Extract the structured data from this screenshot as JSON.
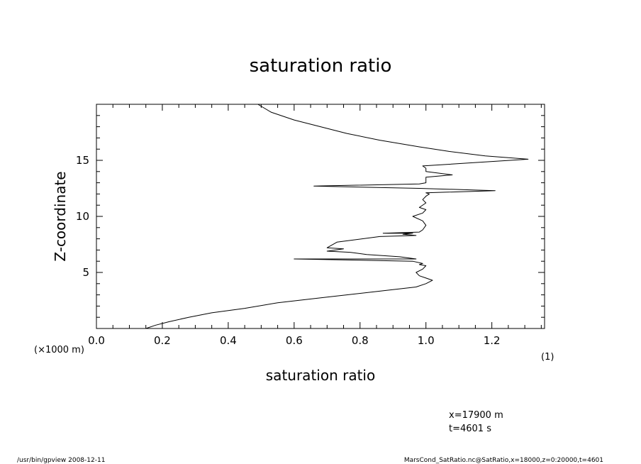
{
  "chart_data": {
    "type": "line",
    "title": "saturation ratio",
    "xlabel": "saturation ratio",
    "ylabel": "Z-coordinate",
    "xlim": [
      0.0,
      1.36
    ],
    "ylim": [
      0,
      20
    ],
    "x_ticks": [
      "0.0",
      "0.2",
      "0.4",
      "0.6",
      "0.8",
      "1.0",
      "1.2"
    ],
    "x_tick_values": [
      0.0,
      0.2,
      0.4,
      0.6,
      0.8,
      1.0,
      1.2
    ],
    "y_ticks": [
      "5",
      "10",
      "15"
    ],
    "y_tick_values": [
      5,
      10,
      15
    ],
    "x_unit_label": "(1)",
    "y_unit_label": "(×1000 m)",
    "grid": false,
    "series": [
      {
        "x": [
          0.15,
          0.18,
          0.22,
          0.28,
          0.35,
          0.45,
          0.55,
          0.7,
          0.85,
          0.97,
          1.0,
          1.02,
          1.0,
          0.98,
          0.97,
          0.99,
          1.0,
          0.98,
          0.99,
          0.96,
          0.6,
          0.97,
          0.92,
          0.82,
          0.77,
          0.7,
          0.75,
          0.7,
          0.73,
          0.86,
          0.97,
          0.93,
          0.96,
          0.87,
          0.98,
          0.99,
          1.0,
          0.99,
          0.96,
          0.99,
          1.0,
          0.98,
          1.0,
          0.99,
          1.0,
          1.01,
          1.0,
          1.21,
          0.98,
          0.66,
          0.98,
          1.0,
          1.0,
          1.08,
          1.0,
          1.0,
          0.99,
          1.31,
          1.18,
          1.07,
          0.98,
          0.86,
          0.76,
          0.68,
          0.6,
          0.53,
          0.49
        ],
        "y": [
          0.0,
          0.3,
          0.6,
          1.0,
          1.4,
          1.8,
          2.3,
          2.8,
          3.3,
          3.7,
          4.0,
          4.3,
          4.5,
          4.7,
          5.0,
          5.3,
          5.6,
          5.7,
          5.8,
          6.0,
          6.2,
          6.2,
          6.4,
          6.6,
          6.8,
          6.9,
          7.1,
          7.2,
          7.7,
          8.2,
          8.3,
          8.4,
          8.5,
          8.5,
          8.6,
          8.8,
          9.2,
          9.6,
          10.0,
          10.3,
          10.6,
          10.8,
          11.2,
          11.5,
          11.8,
          12.0,
          12.1,
          12.3,
          12.5,
          12.7,
          12.9,
          13.0,
          13.5,
          13.7,
          14.0,
          14.3,
          14.5,
          15.1,
          15.4,
          15.8,
          16.2,
          16.8,
          17.4,
          18.0,
          18.6,
          19.3,
          20.0
        ]
      }
    ]
  },
  "annotations": {
    "location": "x=17900  m",
    "time": "t=4601  s"
  },
  "footer": {
    "left": "/usr/bin/gpview   2008-12-11",
    "right": "MarsCond_SatRatio.nc@SatRatio,x=18000,z=0:20000,t=4601"
  }
}
